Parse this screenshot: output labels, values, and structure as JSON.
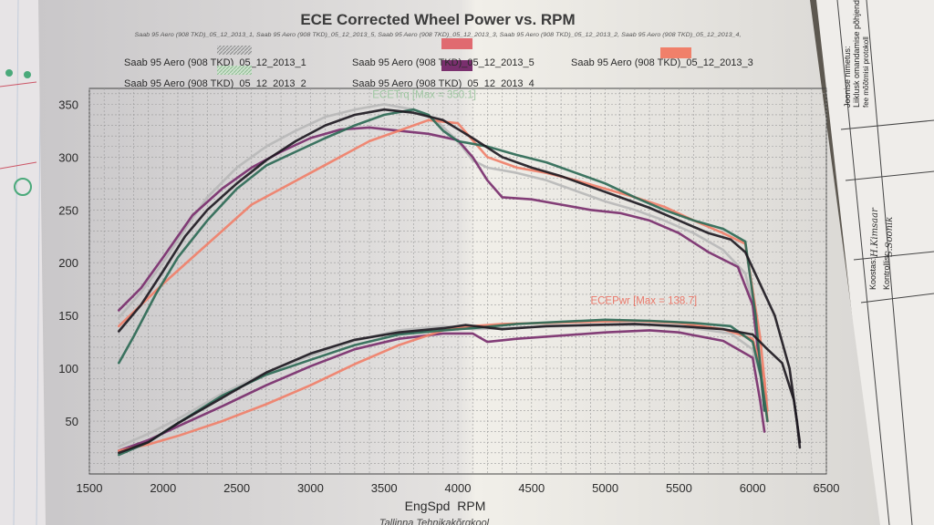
{
  "title": "ECE Corrected Wheel Power vs. RPM",
  "subtitle": "Saab 95 Aero (908 TKD)_05_12_2013_1, Saab 95 Aero (908 TKD)_05_12_2013_5, Saab 95 Aero (908 TKD)_05_12_2013_3, Saab 95 Aero (908 TKD)_05_12_2013_2, Saab 95 Aero (908 TKD)_05_12_2013_4,",
  "footer": "Tallinna Tehnikakõrgkool",
  "side_form": {
    "heading": "Liiklusk omandamise põhjendus",
    "line2": "Joonise nimetus:",
    "line3": "fee mõõtmisi protokoll",
    "koostas_label": "Koostas:",
    "koostas_value": "H.Kimsaar",
    "kontrollis_label": "Kontrollis:",
    "kontrollis_value": "S.Soonik"
  },
  "chart_data": {
    "type": "line",
    "title": "ECE Corrected Wheel Power vs. RPM",
    "xlabel": "EngSpd  RPM",
    "ylabel": "",
    "xlim": [
      1500,
      6500
    ],
    "ylim": [
      0,
      365
    ],
    "xticks": [
      1500,
      2000,
      2500,
      3000,
      3500,
      4000,
      4500,
      5000,
      5500,
      6000,
      6500
    ],
    "yticks": [
      50,
      100,
      150,
      200,
      250,
      300,
      350
    ],
    "grid": true,
    "annotations": [
      {
        "text": "ECETrq [Max = 350.1]",
        "x": 3420,
        "y": 356,
        "color": "#9fc7a2"
      },
      {
        "text": "ECEPwr [Max = 138.7]",
        "x": 4900,
        "y": 161,
        "color": "#e9786a"
      }
    ],
    "series": [
      {
        "name": "Saab 95 Aero (908 TKD)_05_12_2013_1",
        "color": "#b9b9b9",
        "swatch": "hatched",
        "torque": [
          [
            1700,
            148
          ],
          [
            1850,
            172
          ],
          [
            2000,
            200
          ],
          [
            2150,
            232
          ],
          [
            2300,
            262
          ],
          [
            2500,
            290
          ],
          [
            2700,
            310
          ],
          [
            2900,
            325
          ],
          [
            3100,
            338
          ],
          [
            3300,
            345
          ],
          [
            3500,
            350
          ],
          [
            3700,
            345
          ],
          [
            3850,
            335
          ],
          [
            4000,
            315
          ],
          [
            4100,
            297
          ],
          [
            4200,
            290
          ],
          [
            4400,
            285
          ],
          [
            4600,
            278
          ],
          [
            4800,
            268
          ],
          [
            5000,
            258
          ],
          [
            5200,
            250
          ],
          [
            5400,
            240
          ],
          [
            5600,
            228
          ],
          [
            5800,
            212
          ],
          [
            5950,
            190
          ],
          [
            6020,
            150
          ]
        ],
        "power": [
          [
            1700,
            26
          ],
          [
            1900,
            38
          ],
          [
            2100,
            52
          ],
          [
            2400,
            76
          ],
          [
            2700,
            96
          ],
          [
            3000,
            112
          ],
          [
            3300,
            126
          ],
          [
            3600,
            136
          ],
          [
            3900,
            140
          ],
          [
            4100,
            137
          ],
          [
            4300,
            138
          ],
          [
            4700,
            140
          ],
          [
            5000,
            141
          ],
          [
            5300,
            141
          ],
          [
            5600,
            138
          ],
          [
            5850,
            133
          ],
          [
            6000,
            118
          ],
          [
            6100,
            70
          ]
        ]
      },
      {
        "name": "Saab 95 Aero (908 TKD)_05_12_2013_5",
        "color": "#7a2f6e",
        "swatch": "solid",
        "torque": [
          [
            1700,
            155
          ],
          [
            1850,
            176
          ],
          [
            2000,
            205
          ],
          [
            2200,
            245
          ],
          [
            2400,
            270
          ],
          [
            2600,
            290
          ],
          [
            2800,
            305
          ],
          [
            3000,
            318
          ],
          [
            3200,
            326
          ],
          [
            3400,
            328
          ],
          [
            3600,
            325
          ],
          [
            3800,
            322
          ],
          [
            4000,
            316
          ],
          [
            4100,
            300
          ],
          [
            4200,
            278
          ],
          [
            4300,
            262
          ],
          [
            4500,
            260
          ],
          [
            4700,
            255
          ],
          [
            4900,
            250
          ],
          [
            5100,
            247
          ],
          [
            5300,
            240
          ],
          [
            5500,
            228
          ],
          [
            5700,
            210
          ],
          [
            5900,
            196
          ],
          [
            6000,
            160
          ],
          [
            6050,
            100
          ],
          [
            6080,
            60
          ]
        ],
        "power": [
          [
            1700,
            22
          ],
          [
            1900,
            32
          ],
          [
            2100,
            45
          ],
          [
            2400,
            64
          ],
          [
            2700,
            84
          ],
          [
            3000,
            102
          ],
          [
            3300,
            118
          ],
          [
            3600,
            128
          ],
          [
            3900,
            133
          ],
          [
            4100,
            133
          ],
          [
            4200,
            125
          ],
          [
            4400,
            128
          ],
          [
            4700,
            131
          ],
          [
            5000,
            134
          ],
          [
            5300,
            136
          ],
          [
            5500,
            134
          ],
          [
            5800,
            126
          ],
          [
            6000,
            110
          ],
          [
            6050,
            70
          ],
          [
            6080,
            40
          ]
        ]
      },
      {
        "name": "Saab 95 Aero (908 TKD)_05_12_2013_3",
        "color": "#f0806a",
        "swatch": "solid",
        "torque": [
          [
            1700,
            140
          ],
          [
            1850,
            160
          ],
          [
            2000,
            180
          ],
          [
            2200,
            205
          ],
          [
            2400,
            230
          ],
          [
            2600,
            255
          ],
          [
            2800,
            270
          ],
          [
            3000,
            285
          ],
          [
            3200,
            300
          ],
          [
            3400,
            315
          ],
          [
            3600,
            325
          ],
          [
            3800,
            335
          ],
          [
            4000,
            332
          ],
          [
            4200,
            300
          ],
          [
            4400,
            290
          ],
          [
            4600,
            285
          ],
          [
            4800,
            278
          ],
          [
            5000,
            270
          ],
          [
            5200,
            262
          ],
          [
            5400,
            253
          ],
          [
            5600,
            240
          ],
          [
            5800,
            228
          ],
          [
            5950,
            218
          ],
          [
            6050,
            130
          ],
          [
            6100,
            60
          ]
        ],
        "power": [
          [
            1700,
            22
          ],
          [
            1900,
            28
          ],
          [
            2100,
            36
          ],
          [
            2400,
            50
          ],
          [
            2700,
            66
          ],
          [
            3000,
            84
          ],
          [
            3300,
            104
          ],
          [
            3600,
            122
          ],
          [
            3900,
            136
          ],
          [
            4100,
            140
          ],
          [
            4300,
            142
          ],
          [
            4600,
            143
          ],
          [
            4900,
            144
          ],
          [
            5200,
            145
          ],
          [
            5500,
            143
          ],
          [
            5800,
            137
          ],
          [
            6000,
            128
          ],
          [
            6080,
            90
          ],
          [
            6100,
            50
          ]
        ]
      },
      {
        "name": "Saab 95 Aero (908 TKD)_05_12_2013_2",
        "color": "#2e6a56",
        "swatch": "hatched-green",
        "torque": [
          [
            1700,
            105
          ],
          [
            1800,
            130
          ],
          [
            1950,
            170
          ],
          [
            2100,
            205
          ],
          [
            2300,
            240
          ],
          [
            2500,
            270
          ],
          [
            2700,
            292
          ],
          [
            2900,
            305
          ],
          [
            3100,
            318
          ],
          [
            3300,
            330
          ],
          [
            3500,
            340
          ],
          [
            3700,
            345
          ],
          [
            3800,
            340
          ],
          [
            3900,
            325
          ],
          [
            4000,
            315
          ],
          [
            4200,
            310
          ],
          [
            4400,
            302
          ],
          [
            4600,
            295
          ],
          [
            4800,
            285
          ],
          [
            5000,
            275
          ],
          [
            5200,
            262
          ],
          [
            5400,
            250
          ],
          [
            5600,
            240
          ],
          [
            5800,
            232
          ],
          [
            5950,
            220
          ],
          [
            6020,
            150
          ],
          [
            6080,
            60
          ]
        ],
        "power": [
          [
            1700,
            18
          ],
          [
            1900,
            30
          ],
          [
            2100,
            48
          ],
          [
            2400,
            74
          ],
          [
            2700,
            94
          ],
          [
            3000,
            108
          ],
          [
            3300,
            122
          ],
          [
            3600,
            132
          ],
          [
            3900,
            136
          ],
          [
            4100,
            138
          ],
          [
            4400,
            142
          ],
          [
            4700,
            144
          ],
          [
            5000,
            146
          ],
          [
            5300,
            145
          ],
          [
            5600,
            143
          ],
          [
            5850,
            140
          ],
          [
            6000,
            125
          ],
          [
            6060,
            90
          ],
          [
            6100,
            50
          ]
        ]
      },
      {
        "name": "Saab 95 Aero (908 TKD)_05_12_2013_4",
        "color": "#1e1a22",
        "swatch": "none",
        "torque": [
          [
            1700,
            135
          ],
          [
            1850,
            160
          ],
          [
            2000,
            192
          ],
          [
            2150,
            225
          ],
          [
            2300,
            250
          ],
          [
            2500,
            275
          ],
          [
            2700,
            297
          ],
          [
            2900,
            315
          ],
          [
            3100,
            330
          ],
          [
            3300,
            340
          ],
          [
            3500,
            345
          ],
          [
            3700,
            342
          ],
          [
            3900,
            335
          ],
          [
            4100,
            318
          ],
          [
            4300,
            300
          ],
          [
            4500,
            290
          ],
          [
            4700,
            282
          ],
          [
            4900,
            272
          ],
          [
            5100,
            262
          ],
          [
            5300,
            252
          ],
          [
            5500,
            240
          ],
          [
            5700,
            228
          ],
          [
            5850,
            222
          ],
          [
            5950,
            210
          ],
          [
            6050,
            180
          ],
          [
            6150,
            150
          ],
          [
            6250,
            100
          ],
          [
            6300,
            50
          ],
          [
            6320,
            25
          ]
        ],
        "power": [
          [
            1700,
            20
          ],
          [
            1900,
            30
          ],
          [
            2100,
            48
          ],
          [
            2400,
            72
          ],
          [
            2700,
            96
          ],
          [
            3000,
            114
          ],
          [
            3300,
            127
          ],
          [
            3600,
            134
          ],
          [
            3900,
            138
          ],
          [
            4050,
            141
          ],
          [
            4300,
            137
          ],
          [
            4600,
            140
          ],
          [
            4900,
            141
          ],
          [
            5200,
            142
          ],
          [
            5500,
            140
          ],
          [
            5800,
            137
          ],
          [
            6000,
            132
          ],
          [
            6100,
            118
          ],
          [
            6200,
            105
          ],
          [
            6280,
            70
          ],
          [
            6320,
            30
          ]
        ]
      }
    ]
  }
}
